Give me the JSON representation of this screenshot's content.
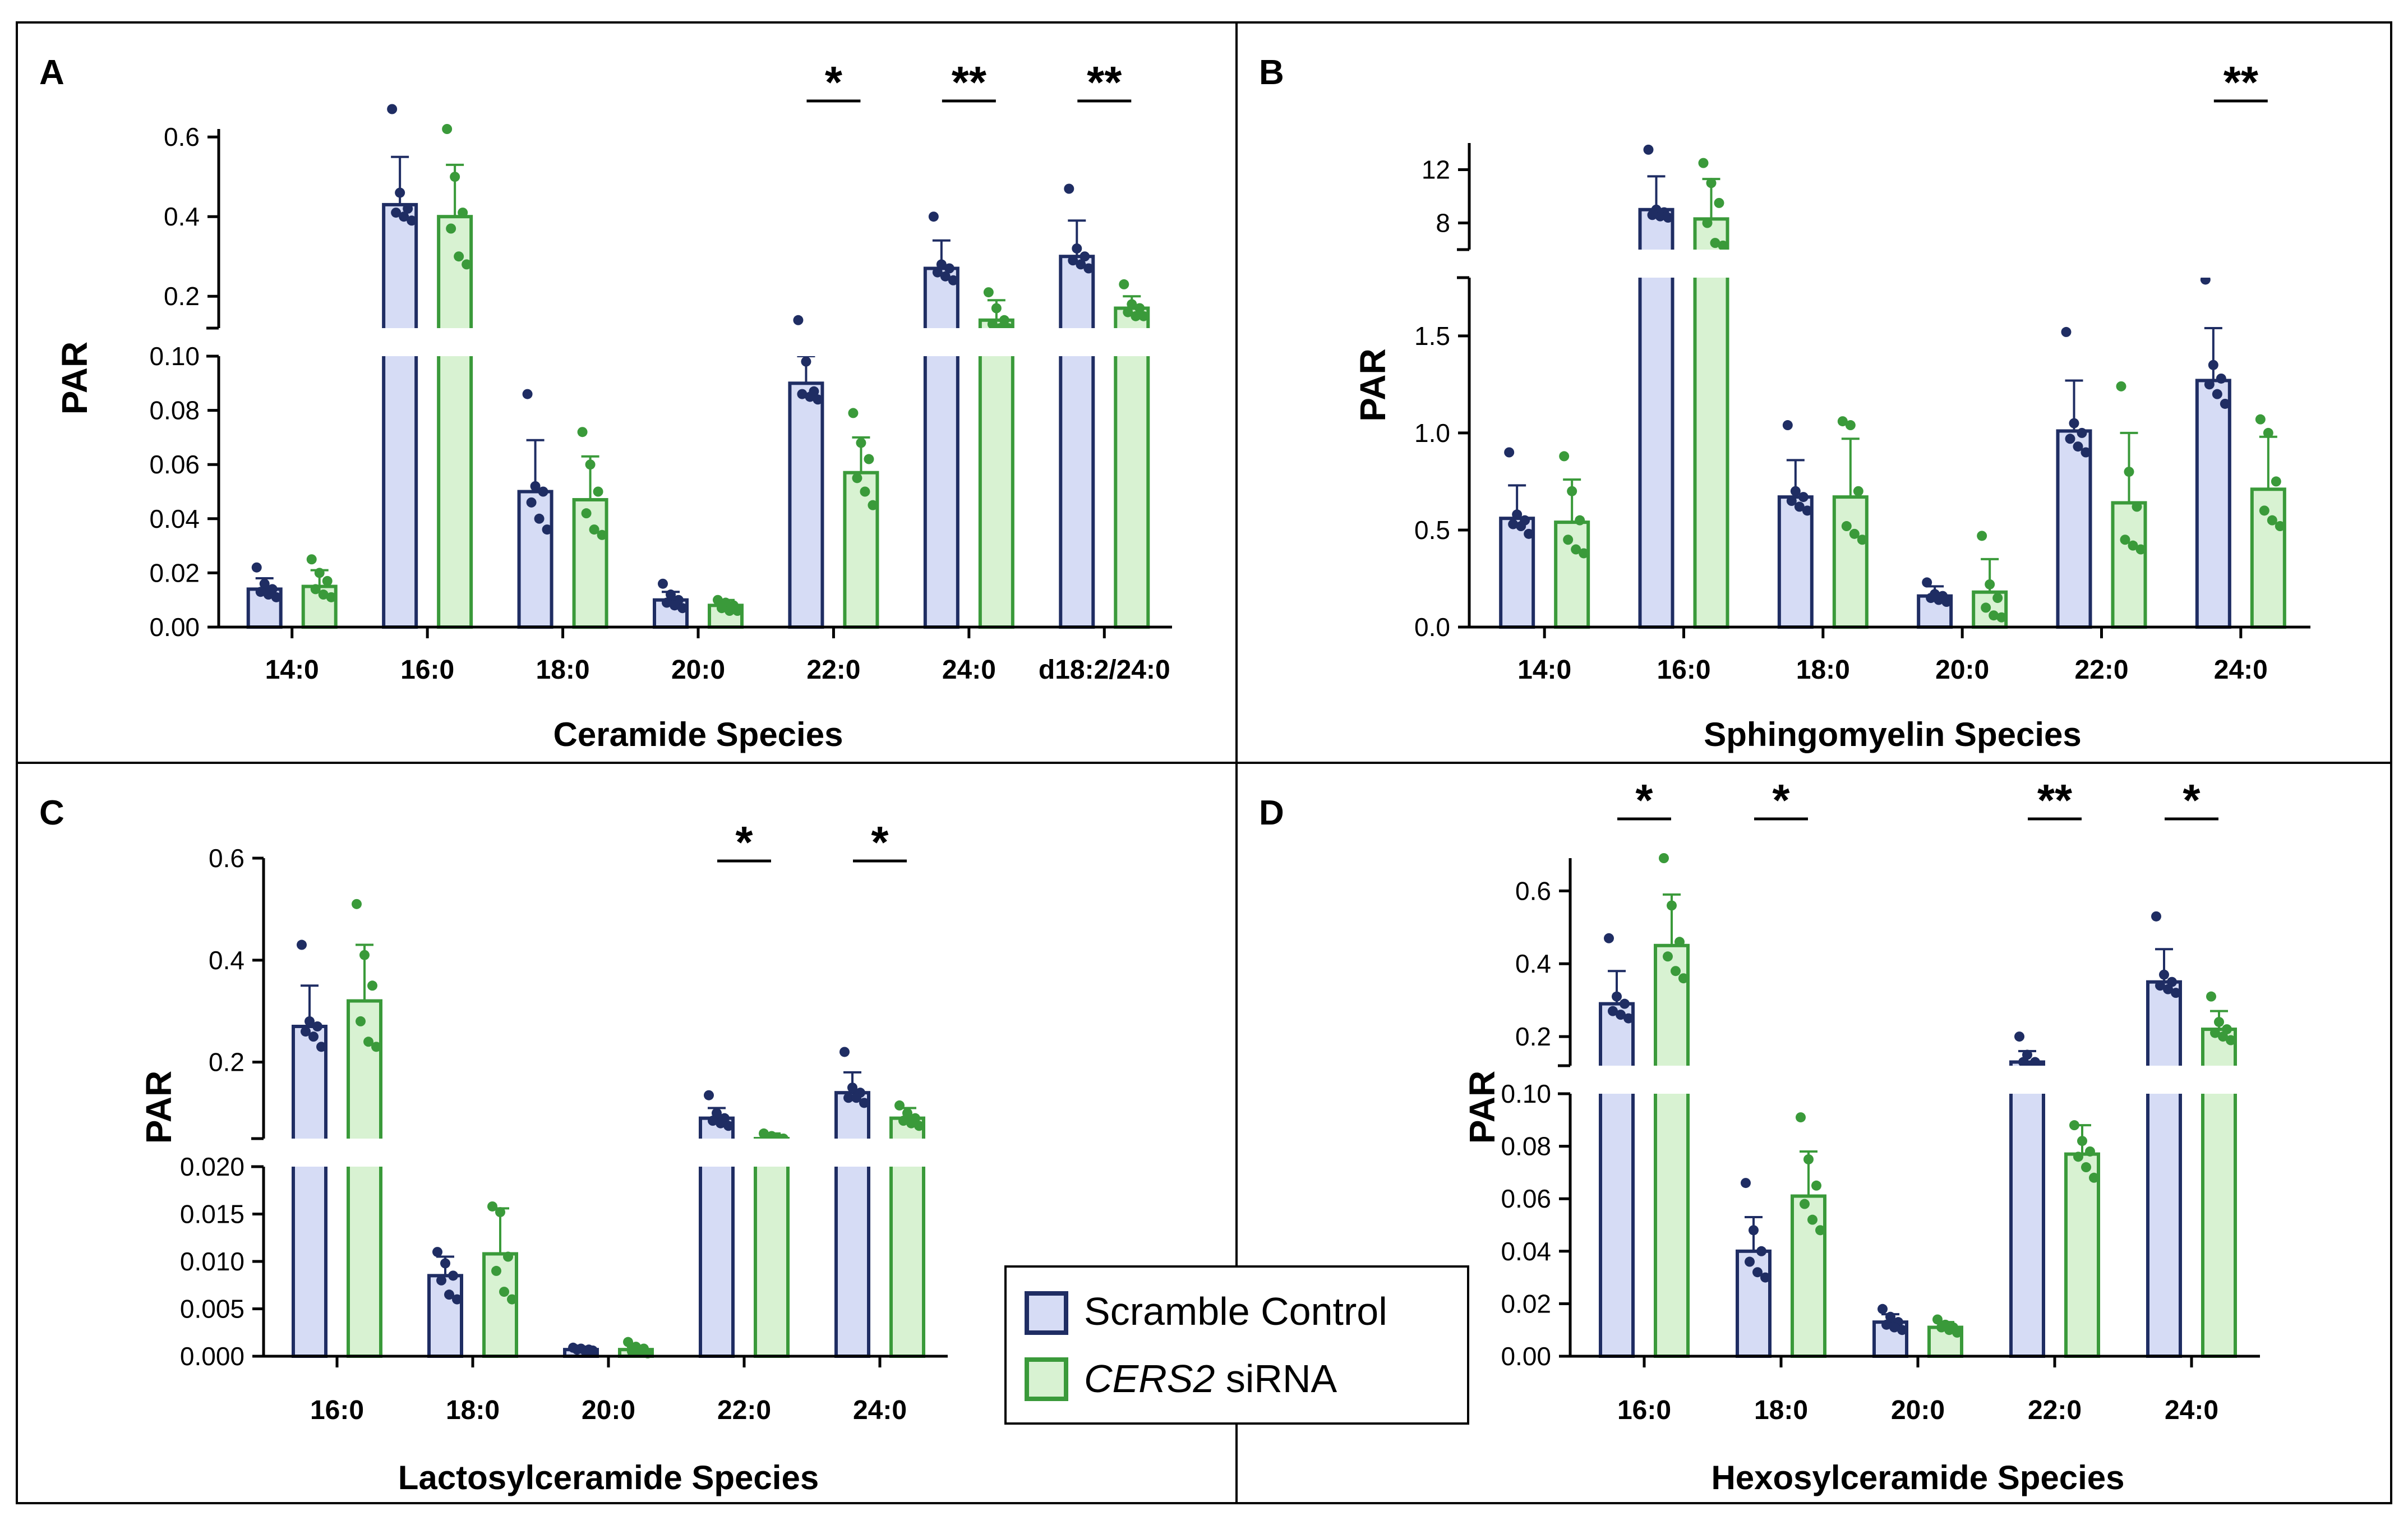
{
  "figure": {
    "colors": {
      "control_edge": "#1f2d63",
      "control_fill": "#d6dcf5",
      "control_dot": "#1f2d63",
      "sirna_edge": "#3a9a3a",
      "sirna_fill": "#d8f2d2",
      "sirna_dot": "#3a9a3a",
      "frame": "#000000"
    },
    "legend": {
      "control_label": "Scramble Control",
      "sirna_gene": "CERS2",
      "sirna_suffix": " siRNA"
    },
    "ylabel": "PAR"
  },
  "chart_data": [
    {
      "panel": "A",
      "type": "bar",
      "xlabel": "Ceramide Species",
      "ylabel": "PAR",
      "categories": [
        "14:0",
        "16:0",
        "18:0",
        "20:0",
        "22:0",
        "24:0",
        "d18:2/24:0"
      ],
      "axis_break": true,
      "lower_axis": {
        "range": [
          0,
          0.1
        ],
        "ticks": [
          "0.00",
          "0.02",
          "0.04",
          "0.06",
          "0.08",
          "0.10"
        ]
      },
      "upper_axis": {
        "range": [
          0.12,
          0.62
        ],
        "ticks": [
          "0.2",
          "0.4",
          "0.6"
        ]
      },
      "series": [
        {
          "name": "Scramble Control",
          "values": [
            0.014,
            0.43,
            0.05,
            0.01,
            0.09,
            0.27,
            0.3
          ],
          "errors": [
            0.004,
            0.12,
            0.019,
            0.003,
            0.01,
            0.07,
            0.09
          ],
          "points": [
            [
              0.022,
              0.016,
              0.014,
              0.013,
              0.012,
              0.011
            ],
            [
              0.67,
              0.46,
              0.42,
              0.41,
              0.4,
              0.39
            ],
            [
              0.086,
              0.052,
              0.05,
              0.046,
              0.04,
              0.036
            ],
            [
              0.016,
              0.012,
              0.01,
              0.009,
              0.008,
              0.007
            ],
            [
              0.14,
              0.098,
              0.087,
              0.086,
              0.085,
              0.084
            ],
            [
              0.4,
              0.28,
              0.27,
              0.26,
              0.25,
              0.24
            ],
            [
              0.47,
              0.32,
              0.3,
              0.29,
              0.28,
              0.27
            ]
          ]
        },
        {
          "name": "CERS2 siRNA",
          "values": [
            0.015,
            0.4,
            0.047,
            0.008,
            0.057,
            0.14,
            0.17
          ],
          "errors": [
            0.006,
            0.13,
            0.016,
            0.002,
            0.013,
            0.05,
            0.03
          ],
          "points": [
            [
              0.025,
              0.02,
              0.017,
              0.014,
              0.012,
              0.011
            ],
            [
              0.62,
              0.5,
              0.41,
              0.37,
              0.3,
              0.28
            ],
            [
              0.072,
              0.06,
              0.05,
              0.042,
              0.036,
              0.034
            ],
            [
              0.01,
              0.009,
              0.008,
              0.007,
              0.006,
              0.006
            ],
            [
              0.079,
              0.068,
              0.062,
              0.055,
              0.05,
              0.045
            ],
            [
              0.21,
              0.17,
              0.14,
              0.13,
              0.12,
              0.12
            ],
            [
              0.23,
              0.18,
              0.17,
              0.16,
              0.15,
              0.15
            ]
          ]
        }
      ],
      "significance": [
        {
          "category": "22:0",
          "label": "*"
        },
        {
          "category": "24:0",
          "label": "**"
        },
        {
          "category": "d18:2/24:0",
          "label": "**"
        }
      ]
    },
    {
      "panel": "B",
      "type": "bar",
      "xlabel": "Sphingomyelin Species",
      "ylabel": "PAR",
      "categories": [
        "14:0",
        "16:0",
        "18:0",
        "20:0",
        "22:0",
        "24:0"
      ],
      "axis_break": true,
      "lower_axis": {
        "range": [
          0,
          1.8
        ],
        "ticks": [
          "0.0",
          "0.5",
          "1.0",
          "1.5"
        ]
      },
      "upper_axis": {
        "range": [
          6,
          14
        ],
        "ticks": [
          "8",
          "12"
        ]
      },
      "series": [
        {
          "name": "Scramble Control",
          "values": [
            0.56,
            9.0,
            0.67,
            0.16,
            1.01,
            1.27
          ],
          "errors": [
            0.17,
            2.5,
            0.19,
            0.05,
            0.26,
            0.27
          ],
          "points": [
            [
              0.9,
              0.58,
              0.55,
              0.53,
              0.52,
              0.48
            ],
            [
              13.5,
              9.0,
              8.8,
              8.6,
              8.5,
              8.4
            ],
            [
              1.04,
              0.7,
              0.67,
              0.65,
              0.62,
              0.6
            ],
            [
              0.23,
              0.17,
              0.16,
              0.15,
              0.14,
              0.13
            ],
            [
              1.52,
              1.05,
              1.0,
              0.97,
              0.93,
              0.9
            ],
            [
              1.79,
              1.35,
              1.28,
              1.25,
              1.2,
              1.15
            ]
          ]
        },
        {
          "name": "CERS2 siRNA",
          "values": [
            0.54,
            8.3,
            0.67,
            0.18,
            0.64,
            0.71
          ],
          "errors": [
            0.22,
            3.0,
            0.3,
            0.17,
            0.36,
            0.27
          ],
          "points": [
            [
              0.88,
              0.7,
              0.55,
              0.45,
              0.4,
              0.38
            ],
            [
              12.5,
              11.0,
              9.5,
              8.0,
              6.5,
              6.3
            ],
            [
              1.06,
              1.04,
              0.7,
              0.52,
              0.48,
              0.45
            ],
            [
              0.47,
              0.22,
              0.15,
              0.1,
              0.06,
              0.05
            ],
            [
              1.24,
              0.8,
              0.62,
              0.45,
              0.42,
              0.4
            ],
            [
              1.07,
              1.0,
              0.75,
              0.6,
              0.55,
              0.52
            ]
          ]
        }
      ],
      "significance": [
        {
          "category": "24:0",
          "label": "**"
        }
      ]
    },
    {
      "panel": "C",
      "type": "bar",
      "xlabel": "Lactosylceramide Species",
      "ylabel": "PAR",
      "categories": [
        "16:0",
        "18:0",
        "20:0",
        "22:0",
        "24:0"
      ],
      "axis_break": true,
      "lower_axis": {
        "range": [
          0,
          0.02
        ],
        "ticks": [
          "0.000",
          "0.005",
          "0.010",
          "0.015",
          "0.020"
        ]
      },
      "upper_axis": {
        "range": [
          0.05,
          0.6
        ],
        "ticks": [
          "0.2",
          "0.4",
          "0.6"
        ]
      },
      "series": [
        {
          "name": "Scramble Control",
          "values": [
            0.27,
            0.0085,
            0.0007,
            0.09,
            0.14
          ],
          "errors": [
            0.08,
            0.002,
            0.0003,
            0.02,
            0.04
          ],
          "points": [
            [
              0.43,
              0.28,
              0.27,
              0.26,
              0.25,
              0.23
            ],
            [
              0.011,
              0.0098,
              0.0085,
              0.008,
              0.0065,
              0.006
            ],
            [
              0.0009,
              0.0008,
              0.0007,
              0.0007,
              0.0006,
              0.0006
            ],
            [
              0.135,
              0.1,
              0.09,
              0.085,
              0.08,
              0.075
            ],
            [
              0.22,
              0.15,
              0.14,
              0.13,
              0.13,
              0.12
            ]
          ]
        },
        {
          "name": "CERS2 siRNA",
          "values": [
            0.32,
            0.0108,
            0.0007,
            0.05,
            0.09
          ],
          "errors": [
            0.11,
            0.0048,
            0.0003,
            0.01,
            0.02
          ],
          "points": [
            [
              0.51,
              0.41,
              0.35,
              0.28,
              0.24,
              0.23
            ],
            [
              0.0158,
              0.0152,
              0.0105,
              0.009,
              0.0068,
              0.006
            ],
            [
              0.0015,
              0.001,
              0.0008,
              0.0005,
              0.0004,
              0.0003
            ],
            [
              0.06,
              0.055,
              0.05,
              0.048,
              0.046,
              0.045
            ],
            [
              0.115,
              0.1,
              0.09,
              0.085,
              0.08,
              0.075
            ]
          ]
        }
      ],
      "significance": [
        {
          "category": "22:0",
          "label": "*"
        },
        {
          "category": "24:0",
          "label": "*"
        }
      ]
    },
    {
      "panel": "D",
      "type": "bar",
      "xlabel": "Hexosylceramide Species",
      "ylabel": "PAR",
      "categories": [
        "16:0",
        "18:0",
        "20:0",
        "22:0",
        "24:0"
      ],
      "axis_break": true,
      "lower_axis": {
        "range": [
          0,
          0.1
        ],
        "ticks": [
          "0.00",
          "0.02",
          "0.04",
          "0.06",
          "0.08",
          "0.10"
        ]
      },
      "upper_axis": {
        "range": [
          0.12,
          0.69
        ],
        "ticks": [
          "0.2",
          "0.4",
          "0.6"
        ]
      },
      "series": [
        {
          "name": "Scramble Control",
          "values": [
            0.29,
            0.04,
            0.013,
            0.13,
            0.35
          ],
          "errors": [
            0.09,
            0.013,
            0.003,
            0.03,
            0.09
          ],
          "points": [
            [
              0.47,
              0.31,
              0.29,
              0.27,
              0.26,
              0.25
            ],
            [
              0.066,
              0.048,
              0.04,
              0.036,
              0.032,
              0.03
            ],
            [
              0.018,
              0.015,
              0.013,
              0.012,
              0.011,
              0.01
            ],
            [
              0.2,
              0.15,
              0.13,
              0.13,
              0.12,
              0.12
            ],
            [
              0.53,
              0.37,
              0.35,
              0.34,
              0.33,
              0.32
            ]
          ]
        },
        {
          "name": "CERS2 siRNA",
          "values": [
            0.45,
            0.061,
            0.011,
            0.077,
            0.22
          ],
          "errors": [
            0.14,
            0.017,
            0.002,
            0.011,
            0.05
          ],
          "points": [
            [
              0.69,
              0.56,
              0.46,
              0.42,
              0.38,
              0.36
            ],
            [
              0.091,
              0.075,
              0.065,
              0.058,
              0.052,
              0.048
            ],
            [
              0.014,
              0.012,
              0.011,
              0.011,
              0.01,
              0.009
            ],
            [
              0.088,
              0.082,
              0.078,
              0.076,
              0.072,
              0.068
            ],
            [
              0.31,
              0.24,
              0.22,
              0.21,
              0.2,
              0.19
            ]
          ]
        }
      ],
      "significance": [
        {
          "category": "16:0",
          "label": "*"
        },
        {
          "category": "18:0",
          "label": "*"
        },
        {
          "category": "22:0",
          "label": "**"
        },
        {
          "category": "24:0",
          "label": "*"
        }
      ]
    }
  ]
}
